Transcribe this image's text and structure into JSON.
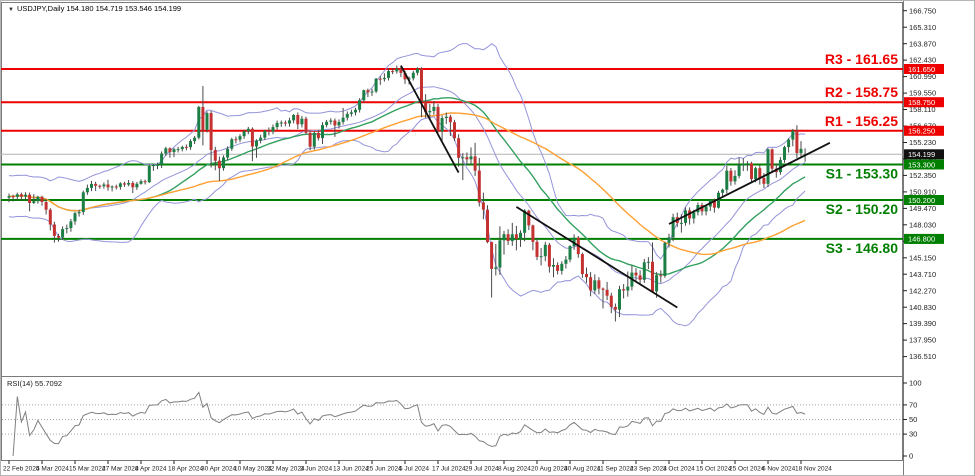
{
  "window": {
    "title": "USDJPY,Daily  154.180 154.719 153.546 154.199",
    "dropdown_icon": "▼"
  },
  "chart_data": {
    "type": "candlestick",
    "symbol": "USDJPY",
    "timeframe": "Daily",
    "last_quote": {
      "open": "154.180",
      "high": "154.719",
      "low": "153.546",
      "close": "154.199"
    },
    "price_axis": {
      "ylim": [
        134.9,
        166.9
      ],
      "ticks": [
        "166.750",
        "165.310",
        "163.870",
        "162.430",
        "160.990",
        "159.550",
        "158.110",
        "156.670",
        "155.230",
        "153.790",
        "152.350",
        "150.910",
        "149.470",
        "148.030",
        "146.590",
        "145.150",
        "143.710",
        "142.270",
        "140.830",
        "139.390",
        "137.950",
        "136.510",
        "135.070"
      ],
      "current_price": "154.199"
    },
    "x_labels": [
      "22 Feb 2024",
      "5 Mar 2024",
      "15 Mar 2024",
      "27 Mar 2024",
      "8 Apr 2024",
      "18 Apr 2024",
      "30 Apr 2024",
      "10 May 2024",
      "22 May 2024",
      "3 Jun 2024",
      "13 Jun 2024",
      "25 Jun 2024",
      "5 Jul 2024",
      "17 Jul 2024",
      "29 Jul 2024",
      "8 Aug 2024",
      "20 Aug 2024",
      "30 Aug 2024",
      "11 Sep 2024",
      "23 Sep 2024",
      "3 Oct 2024",
      "15 Oct 2024",
      "25 Oct 2024",
      "6 Nov 2024",
      "18 Nov 2024"
    ],
    "label_every": 8,
    "sr_levels": [
      {
        "name": "R3",
        "label": "R3 - 161.65",
        "price": 161.65,
        "axis_label": "161.650",
        "kind": "resistance"
      },
      {
        "name": "R2",
        "label": "R2 - 158.75",
        "price": 158.75,
        "axis_label": "158.750",
        "kind": "resistance"
      },
      {
        "name": "R1",
        "label": "R1 - 156.25",
        "price": 156.25,
        "axis_label": "156.250",
        "kind": "resistance"
      },
      {
        "name": "S1",
        "label": "S1 - 153.30",
        "price": 153.3,
        "axis_label": "153.300",
        "kind": "support"
      },
      {
        "name": "S2",
        "label": "S2 - 150.20",
        "price": 150.2,
        "axis_label": "150.200",
        "kind": "support"
      },
      {
        "name": "S3",
        "label": "S3 - 146.80",
        "price": 146.8,
        "axis_label": "146.800",
        "kind": "support"
      }
    ],
    "current_price": 154.199,
    "ohlc_columns": [
      "open",
      "high",
      "low",
      "close"
    ],
    "candles": [
      [
        150.4,
        150.77,
        150.01,
        150.53
      ],
      [
        150.53,
        150.66,
        150.07,
        150.48
      ],
      [
        150.48,
        150.85,
        150.18,
        150.7
      ],
      [
        150.7,
        150.85,
        150.12,
        150.5
      ],
      [
        150.5,
        150.88,
        150.23,
        150.66
      ],
      [
        150.66,
        150.85,
        149.21,
        149.94
      ],
      [
        149.94,
        150.72,
        149.85,
        150.1
      ],
      [
        150.1,
        150.58,
        149.88,
        150.48
      ],
      [
        150.48,
        150.58,
        149.7,
        150.03
      ],
      [
        150.03,
        150.28,
        148.93,
        149.35
      ],
      [
        149.35,
        149.48,
        147.54,
        148.06
      ],
      [
        148.06,
        148.3,
        146.48,
        147.06
      ],
      [
        147.06,
        147.25,
        146.55,
        146.92
      ],
      [
        146.92,
        147.9,
        146.7,
        147.66
      ],
      [
        147.66,
        148.05,
        147.28,
        147.74
      ],
      [
        147.74,
        148.55,
        147.42,
        148.33
      ],
      [
        148.33,
        149.17,
        148.03,
        149.05
      ],
      [
        149.05,
        149.35,
        148.75,
        149.15
      ],
      [
        149.15,
        151.02,
        148.9,
        150.87
      ],
      [
        150.87,
        151.55,
        150.65,
        151.26
      ],
      [
        151.26,
        151.86,
        150.98,
        151.61
      ],
      [
        151.61,
        151.8,
        151.0,
        151.44
      ],
      [
        151.44,
        151.55,
        151.18,
        151.41
      ],
      [
        151.41,
        151.73,
        151.2,
        151.56
      ],
      [
        151.56,
        151.97,
        151.02,
        151.31
      ],
      [
        151.31,
        151.48,
        150.95,
        151.38
      ],
      [
        151.38,
        151.55,
        151.12,
        151.35
      ],
      [
        151.35,
        151.75,
        151.1,
        151.65
      ],
      [
        151.65,
        151.8,
        151.35,
        151.55
      ],
      [
        151.55,
        151.95,
        151.4,
        151.69
      ],
      [
        151.69,
        151.85,
        150.81,
        151.31
      ],
      [
        151.31,
        151.78,
        151.08,
        151.62
      ],
      [
        151.62,
        152.0,
        151.55,
        151.84
      ],
      [
        151.84,
        151.98,
        151.56,
        151.76
      ],
      [
        151.76,
        153.3,
        151.7,
        153.17
      ],
      [
        153.17,
        153.35,
        152.75,
        153.25
      ],
      [
        153.25,
        153.45,
        152.9,
        153.28
      ],
      [
        153.28,
        154.45,
        153.0,
        154.27
      ],
      [
        154.27,
        154.85,
        154.05,
        154.72
      ],
      [
        154.72,
        154.8,
        153.9,
        154.39
      ],
      [
        154.39,
        154.75,
        153.95,
        154.64
      ],
      [
        154.64,
        154.85,
        154.35,
        154.65
      ],
      [
        154.65,
        154.95,
        154.45,
        154.84
      ],
      [
        154.84,
        155.05,
        154.55,
        154.82
      ],
      [
        154.82,
        155.5,
        154.6,
        155.35
      ],
      [
        155.35,
        155.8,
        155.1,
        155.65
      ],
      [
        155.65,
        158.44,
        155.5,
        158.33
      ],
      [
        158.33,
        160.17,
        154.97,
        156.35
      ],
      [
        156.35,
        157.95,
        156.1,
        157.8
      ],
      [
        157.8,
        157.98,
        153.04,
        154.57
      ],
      [
        154.57,
        154.85,
        152.8,
        153.64
      ],
      [
        153.64,
        154.0,
        151.86,
        152.98
      ],
      [
        152.98,
        154.1,
        152.75,
        153.92
      ],
      [
        153.92,
        154.9,
        153.7,
        154.69
      ],
      [
        154.69,
        155.65,
        154.5,
        155.52
      ],
      [
        155.52,
        155.75,
        155.15,
        155.48
      ],
      [
        155.48,
        155.95,
        155.25,
        155.78
      ],
      [
        155.78,
        156.35,
        155.55,
        156.21
      ],
      [
        156.21,
        156.6,
        155.95,
        156.43
      ],
      [
        156.43,
        156.55,
        153.6,
        154.88
      ],
      [
        154.88,
        155.51,
        153.88,
        155.39
      ],
      [
        155.39,
        155.9,
        155.15,
        155.65
      ],
      [
        155.65,
        156.35,
        155.45,
        156.25
      ],
      [
        156.25,
        156.55,
        155.85,
        156.18
      ],
      [
        156.18,
        156.8,
        155.95,
        156.57
      ],
      [
        156.57,
        157.15,
        156.35,
        156.94
      ],
      [
        156.94,
        157.15,
        156.6,
        156.98
      ],
      [
        156.98,
        157.15,
        156.65,
        156.89
      ],
      [
        156.89,
        157.4,
        156.6,
        157.16
      ],
      [
        157.16,
        157.71,
        156.9,
        157.63
      ],
      [
        157.63,
        157.85,
        156.4,
        156.82
      ],
      [
        156.82,
        157.55,
        156.55,
        157.31
      ],
      [
        157.31,
        157.48,
        155.95,
        156.08
      ],
      [
        156.08,
        156.25,
        154.55,
        154.86
      ],
      [
        154.86,
        156.2,
        154.6,
        156.07
      ],
      [
        156.07,
        156.3,
        155.4,
        155.61
      ],
      [
        155.61,
        157.0,
        155.1,
        156.75
      ],
      [
        156.75,
        157.2,
        156.55,
        157.04
      ],
      [
        157.04,
        157.35,
        156.8,
        157.15
      ],
      [
        157.15,
        157.33,
        155.72,
        156.72
      ],
      [
        156.72,
        157.25,
        156.45,
        157.03
      ],
      [
        157.03,
        158.25,
        156.8,
        157.4
      ],
      [
        157.4,
        157.95,
        157.15,
        157.73
      ],
      [
        157.73,
        158.1,
        157.5,
        157.86
      ],
      [
        157.86,
        158.25,
        157.6,
        158.09
      ],
      [
        158.09,
        159.1,
        157.85,
        158.93
      ],
      [
        158.93,
        159.85,
        158.7,
        159.8
      ],
      [
        159.8,
        159.94,
        159.2,
        159.62
      ],
      [
        159.62,
        159.93,
        159.3,
        159.69
      ],
      [
        159.69,
        160.87,
        159.55,
        160.81
      ],
      [
        160.81,
        161.03,
        160.26,
        160.76
      ],
      [
        160.76,
        161.28,
        160.55,
        160.88
      ],
      [
        160.88,
        161.72,
        160.65,
        161.47
      ],
      [
        161.47,
        161.74,
        161.2,
        161.44
      ],
      [
        161.44,
        161.95,
        161.25,
        161.69
      ],
      [
        161.69,
        161.85,
        160.95,
        161.31
      ],
      [
        161.31,
        161.5,
        160.35,
        160.75
      ],
      [
        160.75,
        161.0,
        160.3,
        160.83
      ],
      [
        160.83,
        161.5,
        160.65,
        161.32
      ],
      [
        161.32,
        161.8,
        161.1,
        161.68
      ],
      [
        161.68,
        161.81,
        157.44,
        158.83
      ],
      [
        158.83,
        159.45,
        157.38,
        157.87
      ],
      [
        157.87,
        158.6,
        157.2,
        157.99
      ],
      [
        157.99,
        158.85,
        157.65,
        158.34
      ],
      [
        158.34,
        158.6,
        156.1,
        156.18
      ],
      [
        156.18,
        157.6,
        155.38,
        157.37
      ],
      [
        157.37,
        157.85,
        156.85,
        157.48
      ],
      [
        157.48,
        157.65,
        155.8,
        157.0
      ],
      [
        157.0,
        157.2,
        155.35,
        155.6
      ],
      [
        155.6,
        155.95,
        153.1,
        153.89
      ],
      [
        153.89,
        154.3,
        151.94,
        153.94
      ],
      [
        153.94,
        154.35,
        153.25,
        153.76
      ],
      [
        153.76,
        154.8,
        153.3,
        154.01
      ],
      [
        154.01,
        155.2,
        152.3,
        152.77
      ],
      [
        152.77,
        153.88,
        149.63,
        149.98
      ],
      [
        149.98,
        150.85,
        148.51,
        149.35
      ],
      [
        149.35,
        149.75,
        146.42,
        146.52
      ],
      [
        146.52,
        146.56,
        141.68,
        144.18
      ],
      [
        144.18,
        146.35,
        143.6,
        144.3
      ],
      [
        144.3,
        147.9,
        143.65,
        146.68
      ],
      [
        146.68,
        147.5,
        145.43,
        147.21
      ],
      [
        147.21,
        147.65,
        146.27,
        146.61
      ],
      [
        146.61,
        148.2,
        146.2,
        147.2
      ],
      [
        147.2,
        147.94,
        145.8,
        146.8
      ],
      [
        146.8,
        147.55,
        146.1,
        147.33
      ],
      [
        147.33,
        149.4,
        146.58,
        149.27
      ],
      [
        149.27,
        149.35,
        147.57,
        147.98
      ],
      [
        147.98,
        148.05,
        145.8,
        146.55
      ],
      [
        146.55,
        146.9,
        144.95,
        145.23
      ],
      [
        145.23,
        146.0,
        144.47,
        145.29
      ],
      [
        145.29,
        146.55,
        144.85,
        146.28
      ],
      [
        146.28,
        146.45,
        143.85,
        144.37
      ],
      [
        144.37,
        145.1,
        143.45,
        144.52
      ],
      [
        144.52,
        144.75,
        143.7,
        144.0
      ],
      [
        144.0,
        144.85,
        143.68,
        144.62
      ],
      [
        144.62,
        145.3,
        144.2,
        144.99
      ],
      [
        144.99,
        146.25,
        144.75,
        146.17
      ],
      [
        146.17,
        147.2,
        145.85,
        146.91
      ],
      [
        146.91,
        147.05,
        145.15,
        145.47
      ],
      [
        145.47,
        145.6,
        143.4,
        143.73
      ],
      [
        143.73,
        144.3,
        142.95,
        143.45
      ],
      [
        143.45,
        143.9,
        141.78,
        142.3
      ],
      [
        142.3,
        143.7,
        142.0,
        143.18
      ],
      [
        143.18,
        143.45,
        141.95,
        142.45
      ],
      [
        142.45,
        142.55,
        140.71,
        142.35
      ],
      [
        142.35,
        143.04,
        141.45,
        141.83
      ],
      [
        141.83,
        142.1,
        140.3,
        140.85
      ],
      [
        140.85,
        141.15,
        139.58,
        140.61
      ],
      [
        140.61,
        142.7,
        139.96,
        142.4
      ],
      [
        142.4,
        142.85,
        141.6,
        142.29
      ],
      [
        142.29,
        143.95,
        141.75,
        142.63
      ],
      [
        142.63,
        144.5,
        142.3,
        143.85
      ],
      [
        143.85,
        144.25,
        143.15,
        143.61
      ],
      [
        143.61,
        144.05,
        142.9,
        143.22
      ],
      [
        143.22,
        145.05,
        142.95,
        144.75
      ],
      [
        144.75,
        145.2,
        144.15,
        144.8
      ],
      [
        144.8,
        146.49,
        142.09,
        142.21
      ],
      [
        142.21,
        143.9,
        141.65,
        143.63
      ],
      [
        143.63,
        144.05,
        142.97,
        143.56
      ],
      [
        143.56,
        146.55,
        143.4,
        146.45
      ],
      [
        146.45,
        147.25,
        146.05,
        146.93
      ],
      [
        146.93,
        149.0,
        146.6,
        148.7
      ],
      [
        148.7,
        149.1,
        147.85,
        148.18
      ],
      [
        148.18,
        148.95,
        147.35,
        148.2
      ],
      [
        148.2,
        149.55,
        147.95,
        149.29
      ],
      [
        149.29,
        149.55,
        148.05,
        148.58
      ],
      [
        148.58,
        149.35,
        148.15,
        149.13
      ],
      [
        149.13,
        149.98,
        148.85,
        149.76
      ],
      [
        149.76,
        149.95,
        148.85,
        149.2
      ],
      [
        149.2,
        149.8,
        148.85,
        149.63
      ],
      [
        149.63,
        150.3,
        149.25,
        150.21
      ],
      [
        150.21,
        150.32,
        149.1,
        149.53
      ],
      [
        149.53,
        151.0,
        149.45,
        150.83
      ],
      [
        150.83,
        151.2,
        150.4,
        151.1
      ],
      [
        151.1,
        153.18,
        150.75,
        152.76
      ],
      [
        152.76,
        153.0,
        151.45,
        151.83
      ],
      [
        151.83,
        152.8,
        151.55,
        152.31
      ],
      [
        152.31,
        153.9,
        152.1,
        153.27
      ],
      [
        153.27,
        153.85,
        152.74,
        153.35
      ],
      [
        153.35,
        153.6,
        152.75,
        153.41
      ],
      [
        153.41,
        153.55,
        151.8,
        152.03
      ],
      [
        152.03,
        153.1,
        151.75,
        152.98
      ],
      [
        152.98,
        153.25,
        151.55,
        152.13
      ],
      [
        152.13,
        152.55,
        151.25,
        151.62
      ],
      [
        151.62,
        154.71,
        151.34,
        154.63
      ],
      [
        154.63,
        154.7,
        152.55,
        152.94
      ],
      [
        152.94,
        153.4,
        152.15,
        152.64
      ],
      [
        152.64,
        153.95,
        152.4,
        153.71
      ],
      [
        153.71,
        154.95,
        153.45,
        154.83
      ],
      [
        154.83,
        155.6,
        154.35,
        155.48
      ],
      [
        155.48,
        156.42,
        154.9,
        156.26
      ],
      [
        156.26,
        156.74,
        153.86,
        154.31
      ],
      [
        154.31,
        155.35,
        153.9,
        154.67
      ],
      [
        154.18,
        154.72,
        153.55,
        154.2
      ]
    ],
    "overlays": {
      "bollinger": {
        "period": 20,
        "deviation": 2
      },
      "ma_fast": {
        "period": 30
      },
      "ma_slow": {
        "period": 55
      }
    },
    "trendlines": [
      {
        "name": "down-trendline-july",
        "from": [
          95,
          161.95
        ],
        "to": [
          109,
          152.6
        ]
      },
      {
        "name": "down-trendline-aug-sep",
        "from": [
          123,
          149.6
        ],
        "to": [
          162,
          140.8
        ]
      },
      {
        "name": "up-trendline-oct-nov",
        "from": [
          160,
          148.1
        ],
        "to": [
          199,
          155.2
        ]
      }
    ],
    "rsi": {
      "label": "RSI(14) 55.7092",
      "period": 14,
      "value": 55.7092,
      "range": [
        0,
        100
      ],
      "levels": [
        70,
        50,
        30
      ],
      "axis_labels": [
        "100",
        "70",
        "50",
        "30",
        "0"
      ]
    },
    "colors": {
      "up": "#1b7e45",
      "down": "#c43131",
      "wick": "#4a4a4a",
      "bollinger": "#9494da",
      "ma_fast": "#33a05f",
      "ma_slow": "#ffa033",
      "resistance": "#ee0000",
      "support": "#007f00",
      "current_price_line": "#b4b4b4",
      "current_badge": "#111111",
      "rsi_line": "#7f7f7f",
      "rsi_level_line": "#a8a8a8",
      "axis_text": "#222222",
      "border": "#7a7a7a"
    }
  }
}
